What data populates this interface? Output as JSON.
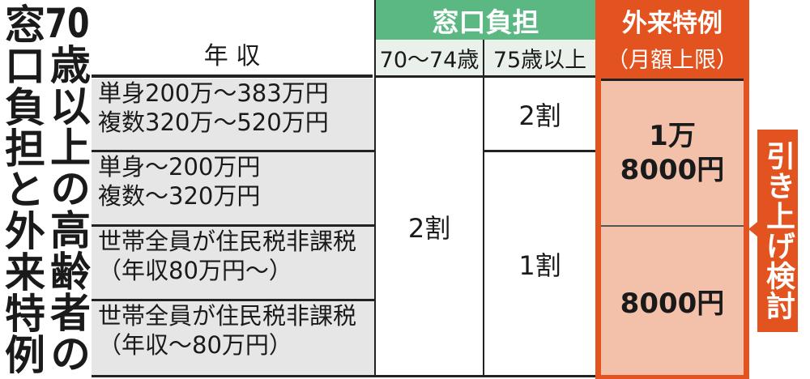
{
  "title": {
    "line1": "窓口負担と外来特例",
    "line2": "70歳以上の高齢者の"
  },
  "table": {
    "income_header": "年 収",
    "copay_header": "窓口負担",
    "copay_sub": [
      "70～74歳",
      "75歳以上"
    ],
    "special_header": "外来特例",
    "special_sub": "（月額上限）",
    "rows": [
      {
        "income": [
          "単身200万～383万円",
          "複数320万～520万円"
        ]
      },
      {
        "income": [
          "単身～200万円",
          "複数～320万円"
        ]
      },
      {
        "income": [
          "世帯全員が住民税非課税",
          "（年収80万円～）"
        ]
      },
      {
        "income": [
          "世帯全員が住民税非課税",
          "（年収～80万円）"
        ]
      }
    ],
    "copay_70_74": "2割",
    "copay_75_a": "2割",
    "copay_75_b": "1割",
    "special_a": [
      "1万",
      "8000円"
    ],
    "special_b": "8000円"
  },
  "note": "引き上げ検討",
  "colors": {
    "green": "#5cb882",
    "green_light": "#e9f1ea",
    "orange": "#e2531f",
    "peach": "#f3c1a9",
    "gray": "#e6e6e6"
  }
}
